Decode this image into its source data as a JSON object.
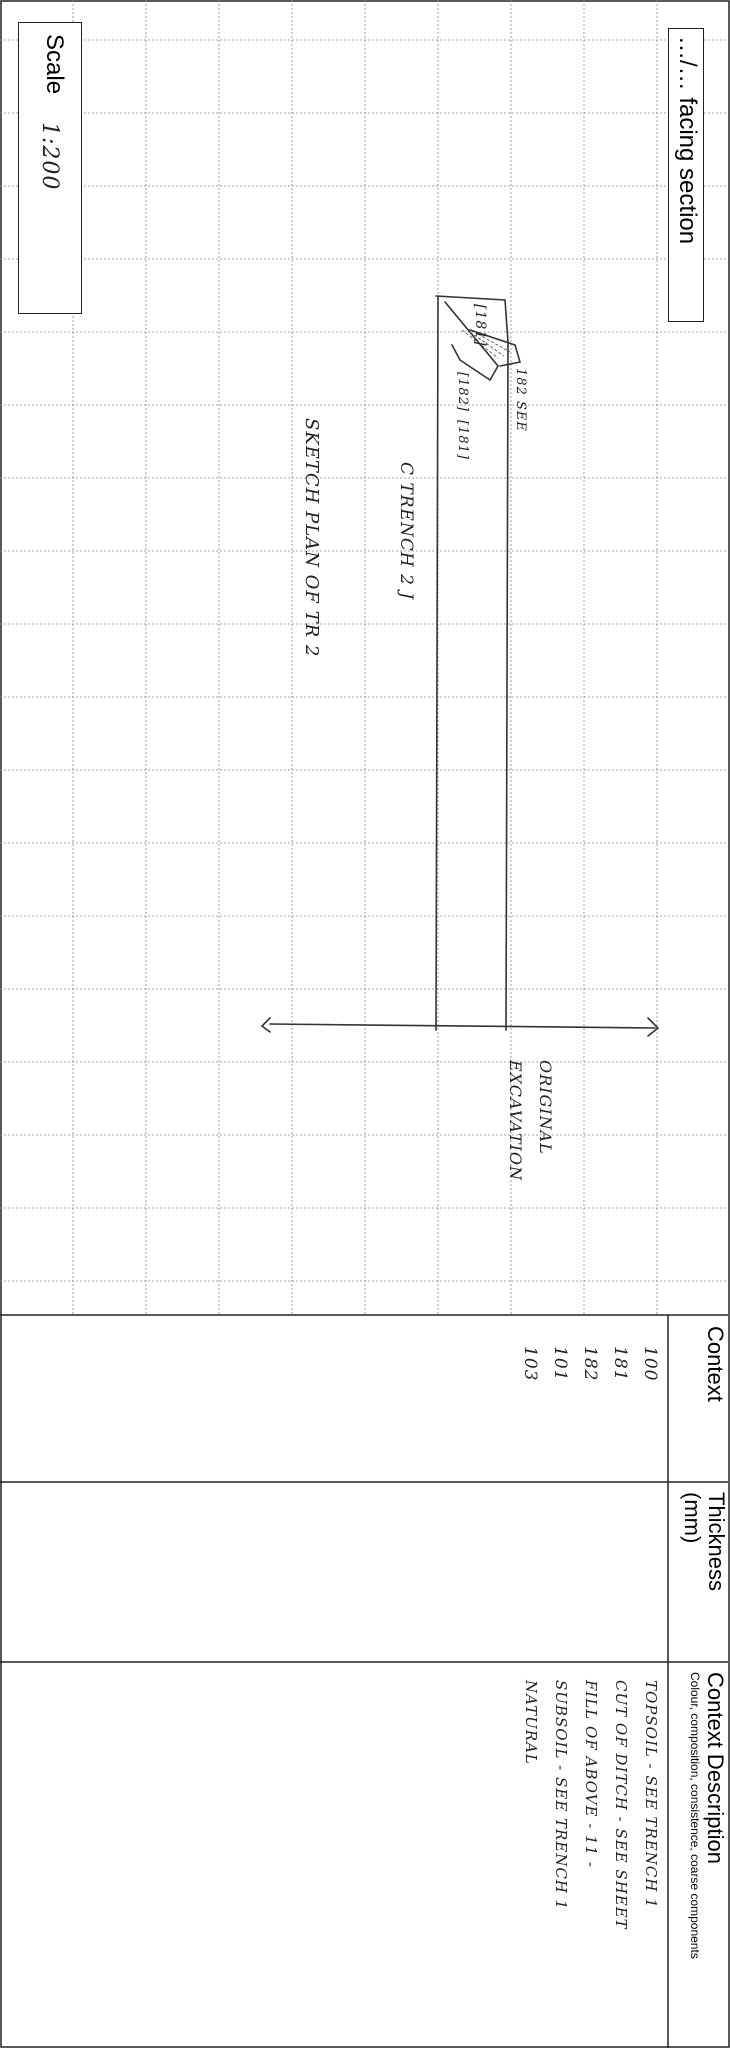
{
  "facing_section_label": "…/… facing section",
  "scale_label": "Scale",
  "scale_value": "1:200",
  "sketch": {
    "title": "SKETCH PLAN OF TR 2",
    "trench_label": "C TRENCH 2 J",
    "ref_181_a": "[181]",
    "ref_181_b": "[181]",
    "ref_182": "[182]",
    "see_note": "182 SEE",
    "original_excavation": "ORIGINAL EXCAVATION"
  },
  "table": {
    "headers": {
      "context": "Context",
      "thickness": "Thickness (mm)",
      "description": "Context Description",
      "description_sub": "Colour, composition, consistence, coarse components"
    },
    "rows": [
      {
        "context": "100",
        "thickness": "",
        "description": "TOPSOIL - SEE TRENCH 1"
      },
      {
        "context": "181",
        "thickness": "",
        "description": "CUT OF DITCH - SEE SHEET"
      },
      {
        "context": "182",
        "thickness": "",
        "description": "FILL OF ABOVE - 11 -"
      },
      {
        "context": "101",
        "thickness": "",
        "description": "SUBSOIL - SEE TRENCH 1"
      },
      {
        "context": "103",
        "thickness": "",
        "description": "NATURAL"
      }
    ]
  }
}
